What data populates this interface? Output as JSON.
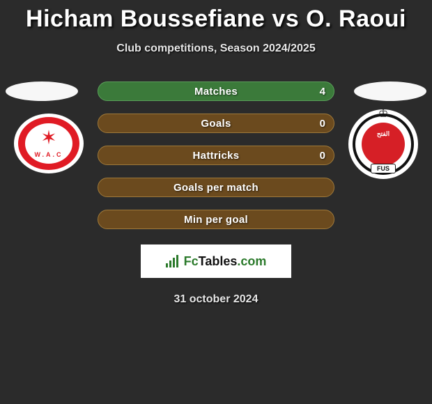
{
  "title": "Hicham Boussefiane vs O. Raoui",
  "title_color": "#ffffff",
  "subtitle": "Club competitions, Season 2024/2025",
  "date": "31 october 2024",
  "background_color": "#2b2b2b",
  "brand": {
    "name_part1": "Fc",
    "name_part2": "Tables",
    "name_part3": ".com",
    "accent_color": "#2b7a2b"
  },
  "stats": [
    {
      "label": "Matches",
      "value_right": "4",
      "bg": "#3b7a3a",
      "border": "#5aa05a"
    },
    {
      "label": "Goals",
      "value_right": "0",
      "bg": "#6b4a1e",
      "border": "#a07a3a"
    },
    {
      "label": "Hattricks",
      "value_right": "0",
      "bg": "#6b4a1e",
      "border": "#a07a3a"
    },
    {
      "label": "Goals per match",
      "value_right": "",
      "bg": "#6b4a1e",
      "border": "#a07a3a"
    },
    {
      "label": "Min per goal",
      "value_right": "",
      "bg": "#6b4a1e",
      "border": "#a07a3a"
    }
  ],
  "clubs": {
    "left": {
      "name": "wydad-ac",
      "primary": "#e01b24",
      "abbr": "W.A.C"
    },
    "right": {
      "name": "fus-rabat",
      "primary": "#d61f26",
      "abbr": "FUS"
    }
  }
}
